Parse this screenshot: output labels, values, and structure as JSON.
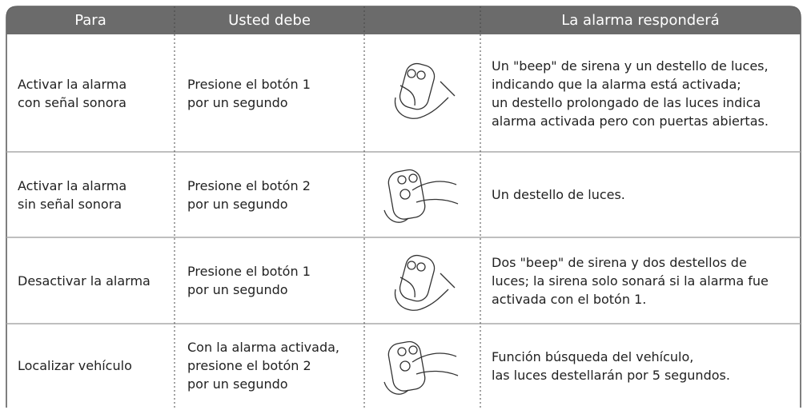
{
  "table": {
    "header": [
      "Para",
      "Usted debe",
      "La alarma responderá"
    ],
    "rows": [
      {
        "para": [
          "Activar la alarma",
          "con señal sonora"
        ],
        "usted": [
          "Presione el botón 1",
          "por un segundo"
        ],
        "respuesta": [
          "Un \"beep\" de sirena y un destello de luces,",
          "indicando que la alarma está activada;",
          "un destello prolongado de las luces indica",
          "alarma activada pero con puertas abiertas."
        ]
      },
      {
        "para": [
          "Activar la alarma",
          "sin señal sonora"
        ],
        "usted": [
          "Presione el botón 2",
          "por un segundo"
        ],
        "respuesta": [
          "Un destello de luces."
        ]
      },
      {
        "para": [
          "Desactivar la alarma"
        ],
        "usted": [
          "Presione el botón 1",
          "por un segundo"
        ],
        "respuesta": [
          "Dos \"beep\" de sirena y dos destellos de",
          "luces; la sirena solo sonará si la alarma fue",
          "activada con el botón 1."
        ]
      },
      {
        "para": [
          "Localizar vehículo"
        ],
        "usted": [
          "Con la alarma activada,",
          "presione el botón 2",
          "por un segundo"
        ],
        "respuesta": [
          "Función búsqueda del vehículo,",
          "las luces destellarán por 5 segundos."
        ]
      }
    ]
  }
}
